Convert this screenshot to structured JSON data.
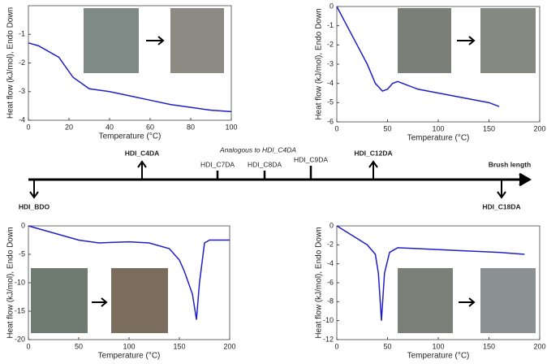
{
  "chart_data": [
    {
      "type": "line",
      "x_label": "Temperature (°C)",
      "y_label": "Heat flow (kJ/mol), Endo Down",
      "color": "#1f1fc8",
      "x": [
        0,
        5,
        15,
        22,
        30,
        40,
        50,
        60,
        70,
        80,
        90,
        100
      ],
      "values": [
        -1.3,
        -1.4,
        -1.8,
        -2.5,
        -2.9,
        -3.0,
        -3.15,
        -3.3,
        -3.45,
        -3.55,
        -3.65,
        -3.7
      ],
      "xlim": [
        0,
        100
      ],
      "xticks": [
        0,
        20,
        40,
        60,
        80,
        100
      ],
      "ylim": [
        -4,
        0
      ],
      "yticks": [
        -4,
        -3,
        -2,
        -1
      ]
    },
    {
      "type": "line",
      "x_label": "Temperature (°C)",
      "y_label": "Heat flow (kJ/mol), Endo Down",
      "color": "#1f1fc8",
      "x": [
        0,
        10,
        20,
        30,
        38,
        45,
        50,
        55,
        60,
        70,
        80,
        100,
        120,
        140,
        150,
        160
      ],
      "values": [
        0,
        -1,
        -2,
        -3,
        -4,
        -4.4,
        -4.3,
        -4,
        -3.9,
        -4.1,
        -4.3,
        -4.5,
        -4.7,
        -4.9,
        -5.0,
        -5.2
      ],
      "xlim": [
        0,
        200
      ],
      "xticks": [
        0,
        50,
        100,
        150,
        200
      ],
      "ylim": [
        -6,
        0
      ],
      "yticks": [
        -6,
        -5,
        -4,
        -3,
        -2,
        -1,
        0
      ]
    },
    {
      "type": "line",
      "x_label": "Temperature (°C)",
      "y_label": "Heat flow (kJ/mol), Endo Down",
      "color": "#1f1fc8",
      "x": [
        0,
        20,
        50,
        70,
        100,
        120,
        140,
        150,
        155,
        163,
        167,
        170,
        175,
        180,
        200
      ],
      "values": [
        0,
        -1,
        -2.5,
        -3,
        -2.8,
        -3,
        -4,
        -6,
        -8,
        -12,
        -16.5,
        -10,
        -3,
        -2.5,
        -2.5
      ],
      "xlim": [
        0,
        200
      ],
      "xticks": [
        0,
        50,
        100,
        150,
        200
      ],
      "ylim": [
        -20,
        0
      ],
      "yticks": [
        -20,
        -15,
        -10,
        -5,
        0
      ]
    },
    {
      "type": "line",
      "x_label": "Temperature (°C)",
      "y_label": "Heat flow (kJ/mol), Endo Down",
      "color": "#1f1fc8",
      "x": [
        0,
        15,
        30,
        38,
        41,
        44,
        47,
        52,
        60,
        80,
        120,
        160,
        185
      ],
      "values": [
        0,
        -1,
        -2,
        -3,
        -5,
        -10,
        -5,
        -2.8,
        -2.3,
        -2.4,
        -2.6,
        -2.8,
        -3
      ],
      "xlim": [
        0,
        200
      ],
      "xticks": [
        0,
        50,
        100,
        150,
        200
      ],
      "ylim": [
        -12,
        0
      ],
      "yticks": [
        -12,
        -10,
        -8,
        -6,
        -4,
        -2,
        0
      ]
    }
  ],
  "timeline": {
    "labels": [
      "HDI_BDO",
      "HDI_C4DA",
      "HDI_C7DA",
      "HDI_C8DA",
      "HDI_C9DA",
      "HDI_C12DA",
      "HDI_C18DA"
    ],
    "note": "Analogous to HDI_C4DA",
    "end_label": "Brush length"
  }
}
